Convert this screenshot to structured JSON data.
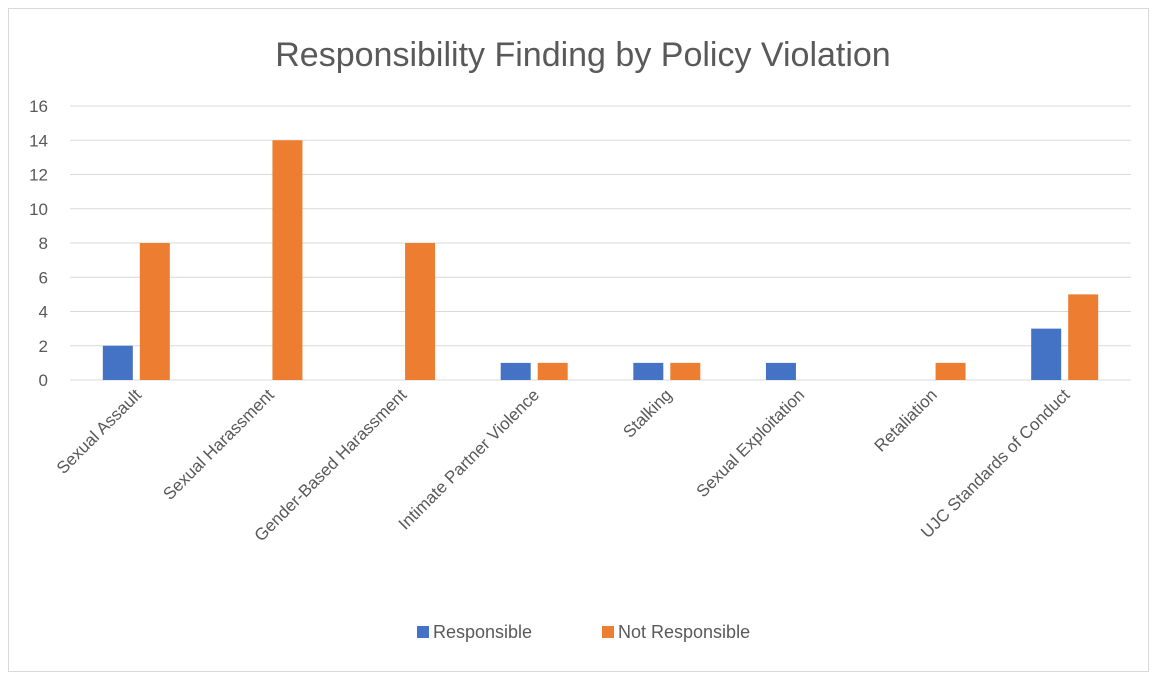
{
  "chart_data": {
    "type": "bar",
    "title": "Responsibility Finding by Policy Violation",
    "xlabel": "",
    "ylabel": "",
    "ylim": [
      0,
      16
    ],
    "yticks": [
      0,
      2,
      4,
      6,
      8,
      10,
      12,
      14,
      16
    ],
    "grid": true,
    "legend_position": "bottom",
    "categories": [
      "Sexual Assault",
      "Sexual Harassment",
      "Gender-Based Harassment",
      "Intimate Partner Violence",
      "Stalking",
      "Sexual Exploitation",
      "Retaliation",
      "UJC Standards of Conduct"
    ],
    "series": [
      {
        "name": "Responsible",
        "color": "#4472c4",
        "values": [
          2,
          0,
          0,
          1,
          1,
          1,
          0,
          3
        ]
      },
      {
        "name": "Not Responsible",
        "color": "#ed7d31",
        "values": [
          8,
          14,
          8,
          1,
          1,
          0,
          1,
          5
        ]
      }
    ]
  }
}
